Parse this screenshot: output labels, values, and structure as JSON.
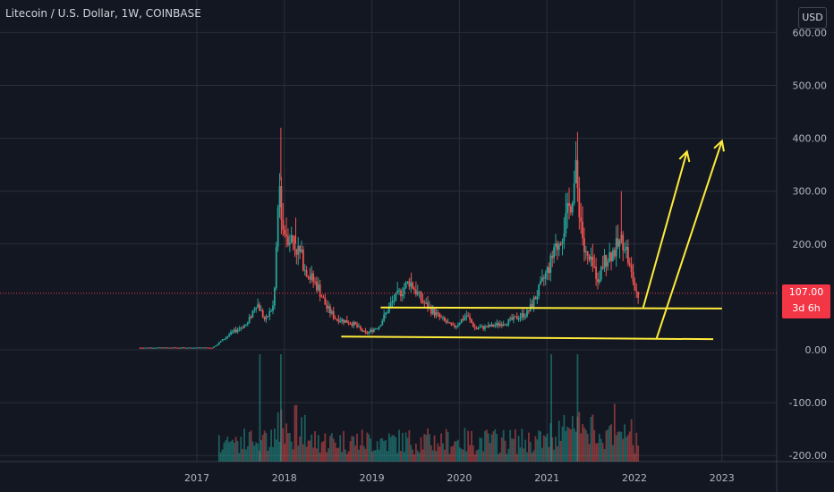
{
  "header": {
    "title": "Litecoin / U.S. Dollar, 1W, COINBASE"
  },
  "toolbar": {
    "currency_label": "USD"
  },
  "last_price": {
    "value": "107.00",
    "countdown": "3d 6h"
  },
  "colors": {
    "background": "#131722",
    "grid": "#2a2e39",
    "up": "#26a69a",
    "down": "#ef5350",
    "drawing": "#ffeb3b",
    "price_tag": "#f23645"
  },
  "chart_data": {
    "type": "candlestick",
    "title": "",
    "y_ticks": [
      "600.00",
      "500.00",
      "400.00",
      "300.00",
      "200.00",
      "0.00",
      "-100.00",
      "-200.00"
    ],
    "x_ticks": [
      "2017",
      "2018",
      "2019",
      "2020",
      "2021",
      "2022",
      "2023"
    ],
    "ylim": [
      -200,
      630
    ],
    "grid": true,
    "price_path": [
      {
        "x": 2016.35,
        "y": 4
      },
      {
        "x": 2016.8,
        "y": 4
      },
      {
        "x": 2017.2,
        "y": 4
      },
      {
        "x": 2017.4,
        "y": 30
      },
      {
        "x": 2017.6,
        "y": 50
      },
      {
        "x": 2017.7,
        "y": 90
      },
      {
        "x": 2017.8,
        "y": 55
      },
      {
        "x": 2017.9,
        "y": 85
      },
      {
        "x": 2017.96,
        "y": 320
      },
      {
        "x": 2018.0,
        "y": 230
      },
      {
        "x": 2018.1,
        "y": 210
      },
      {
        "x": 2018.2,
        "y": 180
      },
      {
        "x": 2018.3,
        "y": 140
      },
      {
        "x": 2018.4,
        "y": 120
      },
      {
        "x": 2018.5,
        "y": 80
      },
      {
        "x": 2018.6,
        "y": 60
      },
      {
        "x": 2018.8,
        "y": 50
      },
      {
        "x": 2018.95,
        "y": 30
      },
      {
        "x": 2019.1,
        "y": 45
      },
      {
        "x": 2019.25,
        "y": 90
      },
      {
        "x": 2019.45,
        "y": 130
      },
      {
        "x": 2019.6,
        "y": 90
      },
      {
        "x": 2019.8,
        "y": 60
      },
      {
        "x": 2019.95,
        "y": 42
      },
      {
        "x": 2020.1,
        "y": 65
      },
      {
        "x": 2020.2,
        "y": 40
      },
      {
        "x": 2020.4,
        "y": 45
      },
      {
        "x": 2020.6,
        "y": 55
      },
      {
        "x": 2020.8,
        "y": 70
      },
      {
        "x": 2020.95,
        "y": 120
      },
      {
        "x": 2021.1,
        "y": 180
      },
      {
        "x": 2021.25,
        "y": 250
      },
      {
        "x": 2021.35,
        "y": 330
      },
      {
        "x": 2021.45,
        "y": 180
      },
      {
        "x": 2021.6,
        "y": 140
      },
      {
        "x": 2021.7,
        "y": 175
      },
      {
        "x": 2021.8,
        "y": 190
      },
      {
        "x": 2021.9,
        "y": 210
      },
      {
        "x": 2021.97,
        "y": 150
      },
      {
        "x": 2022.05,
        "y": 107
      }
    ],
    "spike_highs": [
      {
        "x": 2017.96,
        "y": 420
      },
      {
        "x": 2018.13,
        "y": 250
      },
      {
        "x": 2019.45,
        "y": 146
      },
      {
        "x": 2021.35,
        "y": 412
      },
      {
        "x": 2021.85,
        "y": 300
      }
    ],
    "drawings": {
      "support_line_upper": {
        "from": {
          "x": 2019.1,
          "y": 80
        },
        "to": {
          "x": 2023.0,
          "y": 78
        }
      },
      "support_line_lower": {
        "from": {
          "x": 2018.65,
          "y": 25
        },
        "to": {
          "x": 2022.9,
          "y": 20
        }
      },
      "arrow_1": {
        "from": {
          "x": 2022.1,
          "y": 80
        },
        "to": {
          "x": 2022.6,
          "y": 375
        }
      },
      "arrow_2": {
        "from": {
          "x": 2022.25,
          "y": 20
        },
        "to": {
          "x": 2023.0,
          "y": 395
        }
      }
    },
    "last_price_line": 107
  }
}
